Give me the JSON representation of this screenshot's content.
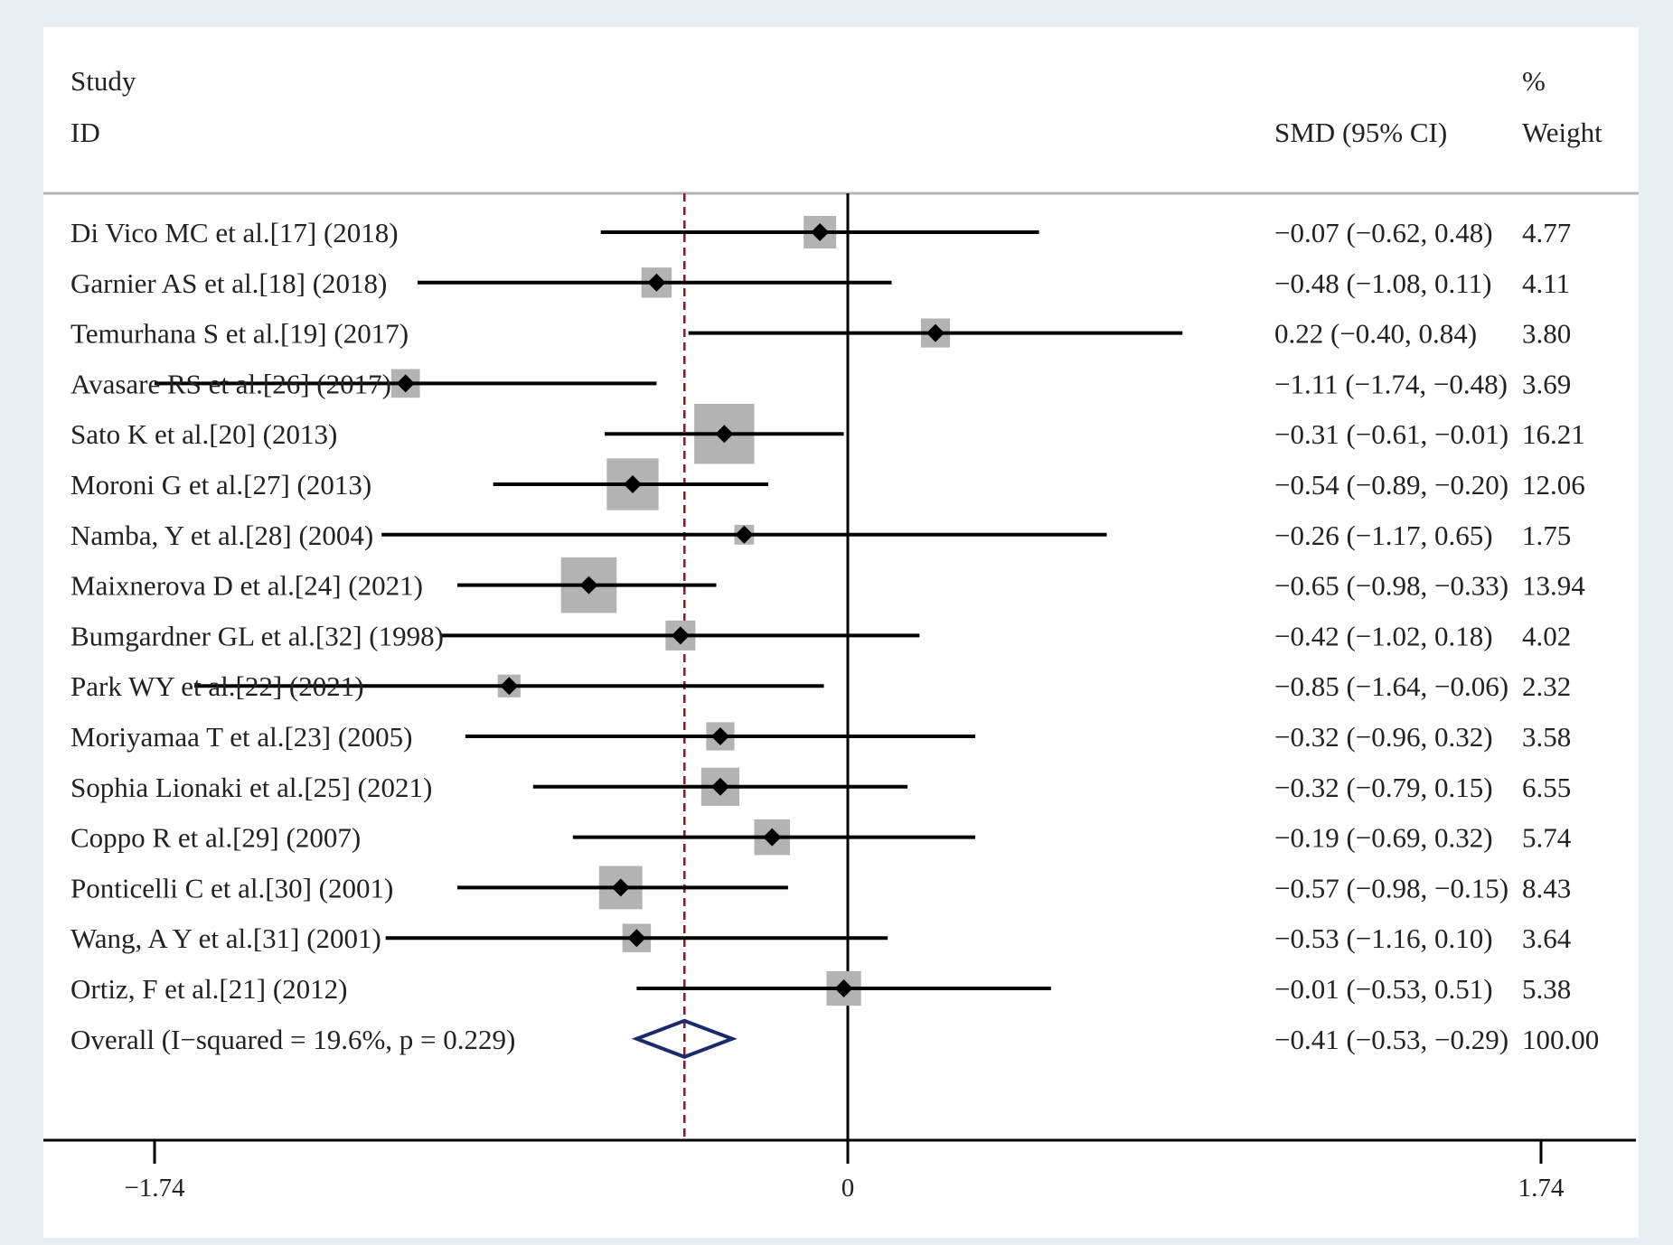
{
  "header": {
    "col1_line1": "Study",
    "col1_line2": "ID",
    "col2": "SMD (95% CI)",
    "col3_line1": "%",
    "col3_line2": "Weight"
  },
  "colors": {
    "background": "#e8eff2",
    "panel": "#ffffff",
    "box": "#b3b3b3",
    "line": "#000000",
    "overall_diamond": "#1b2a6b",
    "overall_line": "#7a1f2b",
    "separator": "#b5b5b5"
  },
  "chart_data": {
    "type": "forest",
    "xlabel": "",
    "ylabel": "",
    "xlim": [
      -2.1,
      2.1
    ],
    "xticks": [
      {
        "value": -1.74,
        "label": "−1.74"
      },
      {
        "value": 0,
        "label": "0"
      },
      {
        "value": 1.74,
        "label": "1.74"
      }
    ],
    "null_line": 0,
    "studies": [
      {
        "label": "Di Vico MC et al.[17] (2018)",
        "smd": -0.07,
        "lo": -0.62,
        "hi": 0.48,
        "ci_text": "−0.07 (−0.62, 0.48)",
        "weight": 4.77,
        "weight_text": "4.77"
      },
      {
        "label": "Garnier AS et al.[18] (2018)",
        "smd": -0.48,
        "lo": -1.08,
        "hi": 0.11,
        "ci_text": "−0.48 (−1.08, 0.11)",
        "weight": 4.11,
        "weight_text": "4.11"
      },
      {
        "label": "Temurhana S et al.[19] (2017)",
        "smd": 0.22,
        "lo": -0.4,
        "hi": 0.84,
        "ci_text": "0.22 (−0.40, 0.84)",
        "weight": 3.8,
        "weight_text": "3.80"
      },
      {
        "label": "Avasare RS et al.[26] (2017)",
        "smd": -1.11,
        "lo": -1.74,
        "hi": -0.48,
        "ci_text": "−1.11 (−1.74, −0.48)",
        "weight": 3.69,
        "weight_text": "3.69"
      },
      {
        "label": "Sato K et al.[20] (2013)",
        "smd": -0.31,
        "lo": -0.61,
        "hi": -0.01,
        "ci_text": "−0.31 (−0.61, −0.01)",
        "weight": 16.21,
        "weight_text": "16.21"
      },
      {
        "label": "Moroni G et al.[27] (2013)",
        "smd": -0.54,
        "lo": -0.89,
        "hi": -0.2,
        "ci_text": "−0.54 (−0.89, −0.20)",
        "weight": 12.06,
        "weight_text": "12.06"
      },
      {
        "label": "Namba, Y et al.[28] (2004)",
        "smd": -0.26,
        "lo": -1.17,
        "hi": 0.65,
        "ci_text": "−0.26 (−1.17, 0.65)",
        "weight": 1.75,
        "weight_text": "1.75"
      },
      {
        "label": "Maixnerova D et al.[24] (2021)",
        "smd": -0.65,
        "lo": -0.98,
        "hi": -0.33,
        "ci_text": "−0.65 (−0.98, −0.33)",
        "weight": 13.94,
        "weight_text": "13.94"
      },
      {
        "label": "Bumgardner GL et al.[32] (1998)",
        "smd": -0.42,
        "lo": -1.02,
        "hi": 0.18,
        "ci_text": "−0.42 (−1.02, 0.18)",
        "weight": 4.02,
        "weight_text": "4.02"
      },
      {
        "label": "Park WY et al.[22] (2021)",
        "smd": -0.85,
        "lo": -1.64,
        "hi": -0.06,
        "ci_text": "−0.85 (−1.64, −0.06)",
        "weight": 2.32,
        "weight_text": "2.32"
      },
      {
        "label": "Moriyamaa T et al.[23] (2005)",
        "smd": -0.32,
        "lo": -0.96,
        "hi": 0.32,
        "ci_text": "−0.32 (−0.96, 0.32)",
        "weight": 3.58,
        "weight_text": "3.58"
      },
      {
        "label": "Sophia Lionaki et al.[25] (2021)",
        "smd": -0.32,
        "lo": -0.79,
        "hi": 0.15,
        "ci_text": "−0.32 (−0.79, 0.15)",
        "weight": 6.55,
        "weight_text": "6.55"
      },
      {
        "label": "Coppo R et al.[29] (2007)",
        "smd": -0.19,
        "lo": -0.69,
        "hi": 0.32,
        "ci_text": "−0.19 (−0.69, 0.32)",
        "weight": 5.74,
        "weight_text": "5.74"
      },
      {
        "label": "Ponticelli C et al.[30] (2001)",
        "smd": -0.57,
        "lo": -0.98,
        "hi": -0.15,
        "ci_text": "−0.57 (−0.98, −0.15)",
        "weight": 8.43,
        "weight_text": "8.43"
      },
      {
        "label": "Wang, A Y et al.[31] (2001)",
        "smd": -0.53,
        "lo": -1.16,
        "hi": 0.1,
        "ci_text": "−0.53 (−1.16, 0.10)",
        "weight": 3.64,
        "weight_text": "3.64"
      },
      {
        "label": "Ortiz, F et al.[21] (2012)",
        "smd": -0.01,
        "lo": -0.53,
        "hi": 0.51,
        "ci_text": "−0.01 (−0.53, 0.51)",
        "weight": 5.38,
        "weight_text": "5.38"
      }
    ],
    "overall": {
      "label": "Overall  (I−squared = 19.6%, p = 0.229)",
      "smd": -0.41,
      "lo": -0.53,
      "hi": -0.29,
      "ci_text": "−0.41 (−0.53, −0.29)",
      "weight": 100.0,
      "weight_text": "100.00"
    }
  }
}
